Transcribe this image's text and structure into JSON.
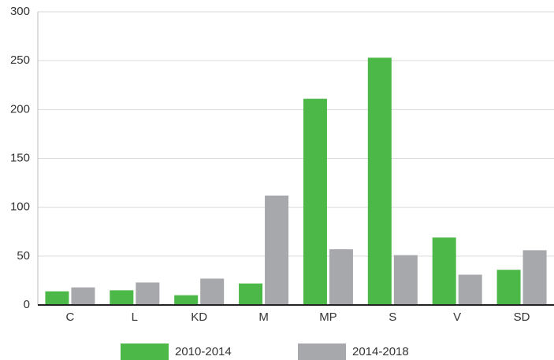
{
  "chart_data": {
    "type": "bar",
    "categories": [
      "C",
      "L",
      "KD",
      "M",
      "MP",
      "S",
      "V",
      "SD"
    ],
    "series": [
      {
        "name": "2010-2014",
        "color": "#4cb848",
        "values": [
          14,
          15,
          10,
          22,
          211,
          253,
          69,
          36
        ]
      },
      {
        "name": "2014-2018",
        "color": "#a7a8ab",
        "values": [
          18,
          23,
          27,
          112,
          57,
          51,
          31,
          56
        ]
      }
    ],
    "ylim": [
      0,
      300
    ],
    "yticks": [
      0,
      50,
      100,
      150,
      200,
      250,
      300
    ],
    "grid": true,
    "legend": "bottom"
  }
}
